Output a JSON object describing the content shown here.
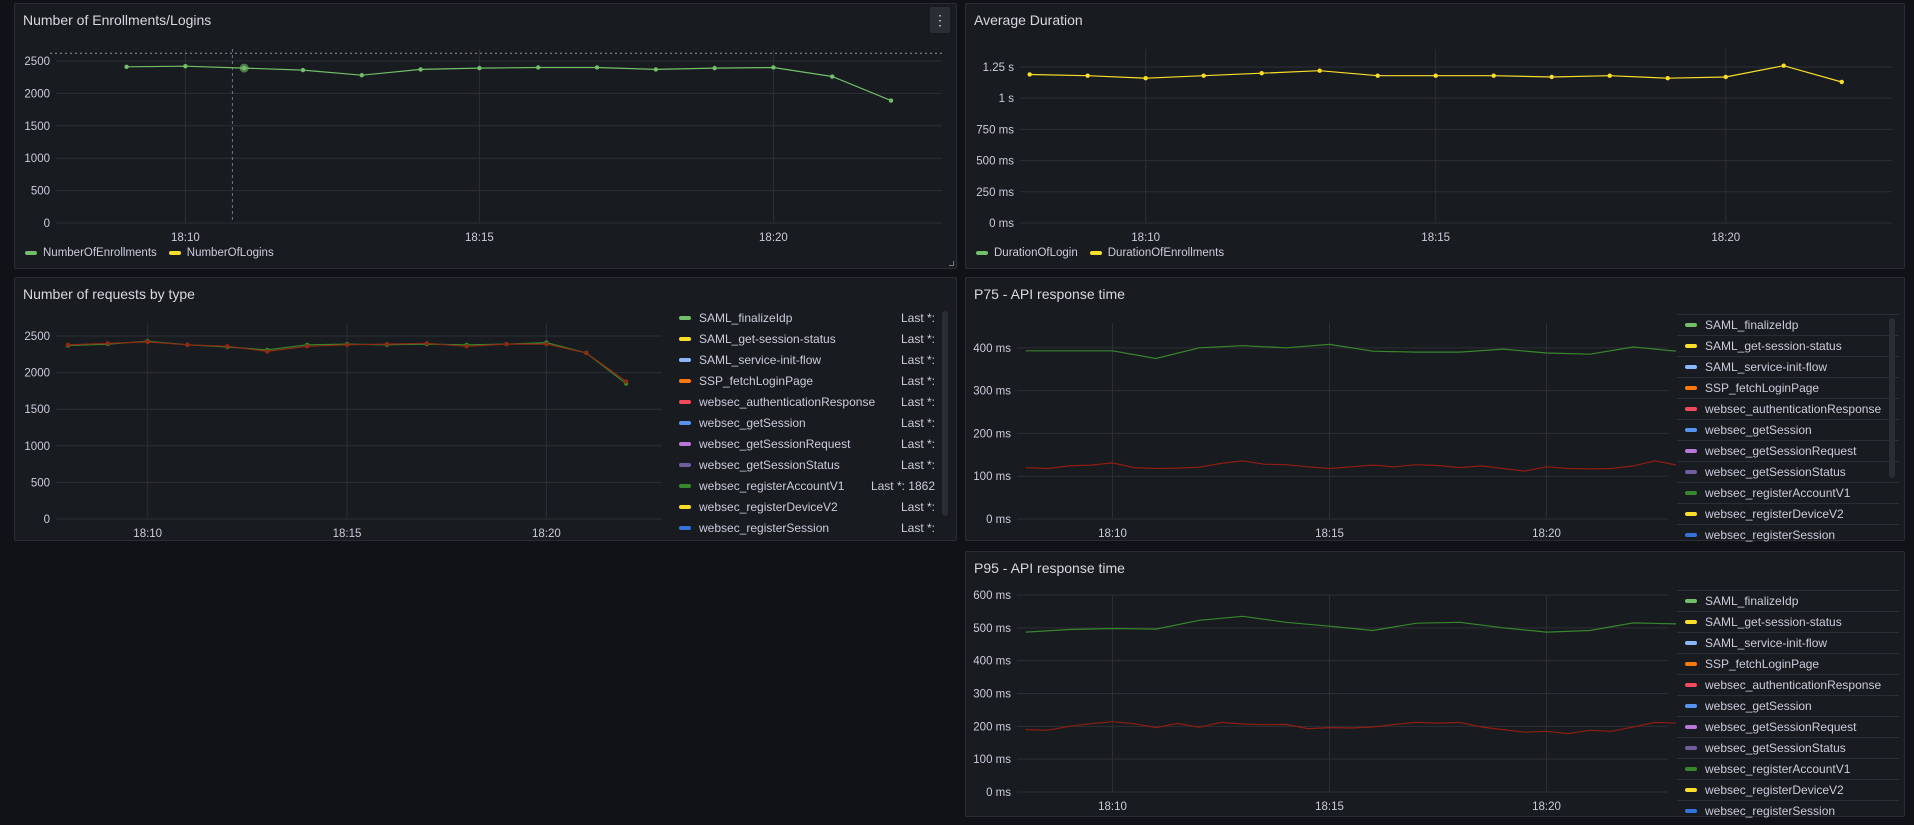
{
  "panels": {
    "enrollments": {
      "title": "Number of Enrollments/Logins",
      "menu_icon": "vertical-ellipsis-icon",
      "legend": [
        {
          "label": "NumberOfEnrollments",
          "color": "#73bf69"
        },
        {
          "label": "NumberOfLogins",
          "color": "#fade2a"
        }
      ]
    },
    "duration": {
      "title": "Average Duration",
      "legend": [
        {
          "label": "DurationOfLogin",
          "color": "#73bf69"
        },
        {
          "label": "DurationOfEnrollments",
          "color": "#fade2a"
        }
      ]
    },
    "requests": {
      "title": "Number of requests by type",
      "legend": [
        {
          "label": "SAML_finalizeIdp",
          "color": "#73bf69",
          "value": "Last *:"
        },
        {
          "label": "SAML_get-session-status",
          "color": "#fade2a",
          "value": "Last *:"
        },
        {
          "label": "SAML_service-init-flow",
          "color": "#8ab8ff",
          "value": "Last *:"
        },
        {
          "label": "SSP_fetchLoginPage",
          "color": "#ff780a",
          "value": "Last *:"
        },
        {
          "label": "websec_authenticationResponse",
          "color": "#f2495c",
          "value": "Last *:"
        },
        {
          "label": "websec_getSession",
          "color": "#5794f2",
          "value": "Last *:"
        },
        {
          "label": "websec_getSessionRequest",
          "color": "#b877d9",
          "value": "Last *:"
        },
        {
          "label": "websec_getSessionStatus",
          "color": "#705da0",
          "value": "Last *:"
        },
        {
          "label": "websec_registerAccountV1",
          "color": "#37872d",
          "value": "Last *: 1862"
        },
        {
          "label": "websec_registerDeviceV2",
          "color": "#fade2a",
          "value": "Last *:"
        },
        {
          "label": "websec_registerSession",
          "color": "#3274d9",
          "value": "Last *:"
        }
      ]
    },
    "p75": {
      "title": "P75 - API response time",
      "legend": [
        {
          "label": "SAML_finalizeIdp",
          "color": "#73bf69"
        },
        {
          "label": "SAML_get-session-status",
          "color": "#fade2a"
        },
        {
          "label": "SAML_service-init-flow",
          "color": "#8ab8ff"
        },
        {
          "label": "SSP_fetchLoginPage",
          "color": "#ff780a"
        },
        {
          "label": "websec_authenticationResponse",
          "color": "#f2495c"
        },
        {
          "label": "websec_getSession",
          "color": "#5794f2"
        },
        {
          "label": "websec_getSessionRequest",
          "color": "#b877d9"
        },
        {
          "label": "websec_getSessionStatus",
          "color": "#705da0"
        },
        {
          "label": "websec_registerAccountV1",
          "color": "#37872d"
        },
        {
          "label": "websec_registerDeviceV2",
          "color": "#fade2a"
        },
        {
          "label": "websec_registerSession",
          "color": "#3274d9"
        }
      ]
    },
    "p95": {
      "title": "P95 - API response time",
      "legend": [
        {
          "label": "SAML_finalizeIdp",
          "color": "#73bf69"
        },
        {
          "label": "SAML_get-session-status",
          "color": "#fade2a"
        },
        {
          "label": "SAML_service-init-flow",
          "color": "#8ab8ff"
        },
        {
          "label": "SSP_fetchLoginPage",
          "color": "#ff780a"
        },
        {
          "label": "websec_authenticationResponse",
          "color": "#f2495c"
        },
        {
          "label": "websec_getSession",
          "color": "#5794f2"
        },
        {
          "label": "websec_getSessionRequest",
          "color": "#b877d9"
        },
        {
          "label": "websec_getSessionStatus",
          "color": "#705da0"
        },
        {
          "label": "websec_registerAccountV1",
          "color": "#37872d"
        },
        {
          "label": "websec_registerDeviceV2",
          "color": "#fade2a"
        },
        {
          "label": "websec_registerSession",
          "color": "#3274d9"
        }
      ]
    }
  },
  "chart_data": [
    {
      "type": "line",
      "title": "Number of Enrollments/Logins",
      "xlim": [
        "18:07:48",
        "18:22:52"
      ],
      "ylim": [
        0,
        2685
      ],
      "x_ticks": [
        "18:10",
        "18:15",
        "18:20"
      ],
      "y_ticks": [
        0,
        500,
        1000,
        1500,
        2000,
        2500
      ],
      "y_tick_labels": [
        "0",
        "500",
        "1000",
        "1500",
        "2000",
        "2500"
      ],
      "grid": true,
      "legend": "bottom",
      "threshold": 2620,
      "crosshair": "18:10:48",
      "show_points": true,
      "series": [
        {
          "name": "NumberOfEnrollments",
          "color": "#73bf69",
          "x": [
            "18:09",
            "18:10",
            "18:11",
            "18:12",
            "18:13",
            "18:14",
            "18:15",
            "18:16",
            "18:17",
            "18:18",
            "18:19",
            "18:20",
            "18:21",
            "18:22"
          ],
          "values": [
            2410,
            2420,
            2390,
            2360,
            2280,
            2370,
            2390,
            2400,
            2400,
            2370,
            2390,
            2400,
            2260,
            1890
          ]
        }
      ]
    },
    {
      "type": "line",
      "title": "Average Duration",
      "xlim": [
        "18:07:50",
        "18:22:52"
      ],
      "ylim": [
        0,
        1394
      ],
      "x_ticks": [
        "18:10",
        "18:15",
        "18:20"
      ],
      "y_ticks": [
        0,
        250,
        500,
        750,
        1000,
        1250
      ],
      "y_tick_labels": [
        "0 ms",
        "250 ms",
        "500 ms",
        "750 ms",
        "1 s",
        "1.25 s"
      ],
      "grid": true,
      "legend": "bottom",
      "show_points": true,
      "series": [
        {
          "name": "DurationOfEnrollments",
          "color": "#fade2a",
          "x": [
            "18:08",
            "18:09",
            "18:10",
            "18:11",
            "18:12",
            "18:13",
            "18:14",
            "18:15",
            "18:16",
            "18:17",
            "18:18",
            "18:19",
            "18:20",
            "18:21",
            "18:22"
          ],
          "values": [
            1190,
            1180,
            1160,
            1180,
            1200,
            1220,
            1180,
            1180,
            1180,
            1170,
            1180,
            1160,
            1170,
            1260,
            1130
          ]
        }
      ]
    },
    {
      "type": "line",
      "title": "Number of requests by type",
      "xlim": [
        "18:07:42",
        "18:22:54"
      ],
      "ylim": [
        0,
        2678
      ],
      "x_ticks": [
        "18:10",
        "18:15",
        "18:20"
      ],
      "y_ticks": [
        0,
        500,
        1000,
        1500,
        2000,
        2500
      ],
      "y_tick_labels": [
        "0",
        "500",
        "1000",
        "1500",
        "2000",
        "2500"
      ],
      "grid": true,
      "legend": "right",
      "show_points": true,
      "series": [
        {
          "color": "#37872d",
          "x": [
            "18:08",
            "18:09",
            "18:10",
            "18:11",
            "18:12",
            "18:13",
            "18:14",
            "18:15",
            "18:16",
            "18:17",
            "18:18",
            "18:19",
            "18:20",
            "18:21",
            "18:22"
          ],
          "values": [
            2370,
            2390,
            2430,
            2380,
            2350,
            2310,
            2380,
            2390,
            2380,
            2390,
            2380,
            2390,
            2410,
            2270,
            1850
          ]
        },
        {
          "color": "#8f2a12",
          "x": [
            "18:08",
            "18:09",
            "18:10",
            "18:11",
            "18:12",
            "18:13",
            "18:14",
            "18:15",
            "18:16",
            "18:17",
            "18:18",
            "18:19",
            "18:20",
            "18:21",
            "18:22"
          ],
          "values": [
            2380,
            2400,
            2420,
            2380,
            2360,
            2290,
            2360,
            2380,
            2390,
            2400,
            2360,
            2390,
            2390,
            2270,
            1880
          ]
        }
      ]
    },
    {
      "type": "line",
      "title": "P75 - API response time",
      "xlim": [
        "18:07:48",
        "18:22:48"
      ],
      "ylim": [
        0,
        458
      ],
      "x_ticks": [
        "18:10",
        "18:15",
        "18:20"
      ],
      "y_ticks": [
        0,
        100,
        200,
        300,
        400
      ],
      "y_tick_labels": [
        "0 ms",
        "100 ms",
        "200 ms",
        "300 ms",
        "400 ms"
      ],
      "grid": true,
      "legend": "right",
      "series": [
        {
          "color": "#37872d",
          "x": [
            "18:08",
            "18:09",
            "18:10",
            "18:11",
            "18:12",
            "18:13",
            "18:14",
            "18:15",
            "18:16",
            "18:17",
            "18:18",
            "18:19",
            "18:20",
            "18:21",
            "18:22",
            "18:23"
          ],
          "values": [
            393,
            393,
            393,
            375,
            400,
            405,
            400,
            408,
            392,
            390,
            390,
            397,
            388,
            385,
            402,
            392
          ]
        },
        {
          "color": "#8f1d12",
          "x": [
            "18:08:00",
            "18:08:30",
            "18:09:00",
            "18:09:30",
            "18:10:00",
            "18:10:30",
            "18:11:00",
            "18:11:30",
            "18:12:00",
            "18:12:30",
            "18:13:00",
            "18:13:30",
            "18:14:00",
            "18:14:30",
            "18:15:00",
            "18:15:30",
            "18:16:00",
            "18:16:30",
            "18:17:00",
            "18:17:30",
            "18:18:00",
            "18:18:30",
            "18:19:00",
            "18:19:30",
            "18:20:00",
            "18:20:30",
            "18:21:00",
            "18:21:30",
            "18:22:00",
            "18:22:30",
            "18:23:00"
          ],
          "values": [
            120,
            118,
            124,
            126,
            131,
            120,
            118,
            119,
            121,
            130,
            136,
            128,
            127,
            122,
            118,
            122,
            126,
            122,
            127,
            125,
            120,
            124,
            118,
            112,
            122,
            118,
            117,
            118,
            124,
            136,
            126
          ]
        }
      ]
    },
    {
      "type": "line",
      "title": "P95 - API response time",
      "xlim": [
        "18:07:48",
        "18:22:48"
      ],
      "ylim": [
        0,
        600
      ],
      "x_ticks": [
        "18:10",
        "18:15",
        "18:20"
      ],
      "y_ticks": [
        0,
        100,
        200,
        300,
        400,
        500,
        600
      ],
      "y_tick_labels": [
        "0 ms",
        "100 ms",
        "200 ms",
        "300 ms",
        "400 ms",
        "500 ms",
        "600 ms"
      ],
      "grid": true,
      "legend": "right",
      "series": [
        {
          "color": "#37872d",
          "x": [
            "18:08",
            "18:09",
            "18:10",
            "18:11",
            "18:12",
            "18:13",
            "18:14",
            "18:15",
            "18:16",
            "18:17",
            "18:18",
            "18:19",
            "18:20",
            "18:21",
            "18:22",
            "18:23"
          ],
          "values": [
            487,
            495,
            498,
            496,
            523,
            535,
            517,
            505,
            492,
            514,
            517,
            500,
            487,
            492,
            515,
            512
          ]
        },
        {
          "color": "#8f1d12",
          "x": [
            "18:08:00",
            "18:08:30",
            "18:09:00",
            "18:09:30",
            "18:10:00",
            "18:10:30",
            "18:11:00",
            "18:11:30",
            "18:12:00",
            "18:12:30",
            "18:13:00",
            "18:13:30",
            "18:14:00",
            "18:14:30",
            "18:15:00",
            "18:15:30",
            "18:16:00",
            "18:16:30",
            "18:17:00",
            "18:17:30",
            "18:18:00",
            "18:18:30",
            "18:19:00",
            "18:19:30",
            "18:20:00",
            "18:20:30",
            "18:21:00",
            "18:21:30",
            "18:22:00",
            "18:22:30",
            "18:23:00"
          ],
          "values": [
            190,
            188,
            200,
            208,
            214,
            208,
            196,
            209,
            197,
            212,
            207,
            205,
            206,
            193,
            196,
            195,
            198,
            206,
            212,
            210,
            212,
            198,
            190,
            182,
            185,
            178,
            188,
            185,
            198,
            212,
            210
          ]
        }
      ]
    }
  ]
}
